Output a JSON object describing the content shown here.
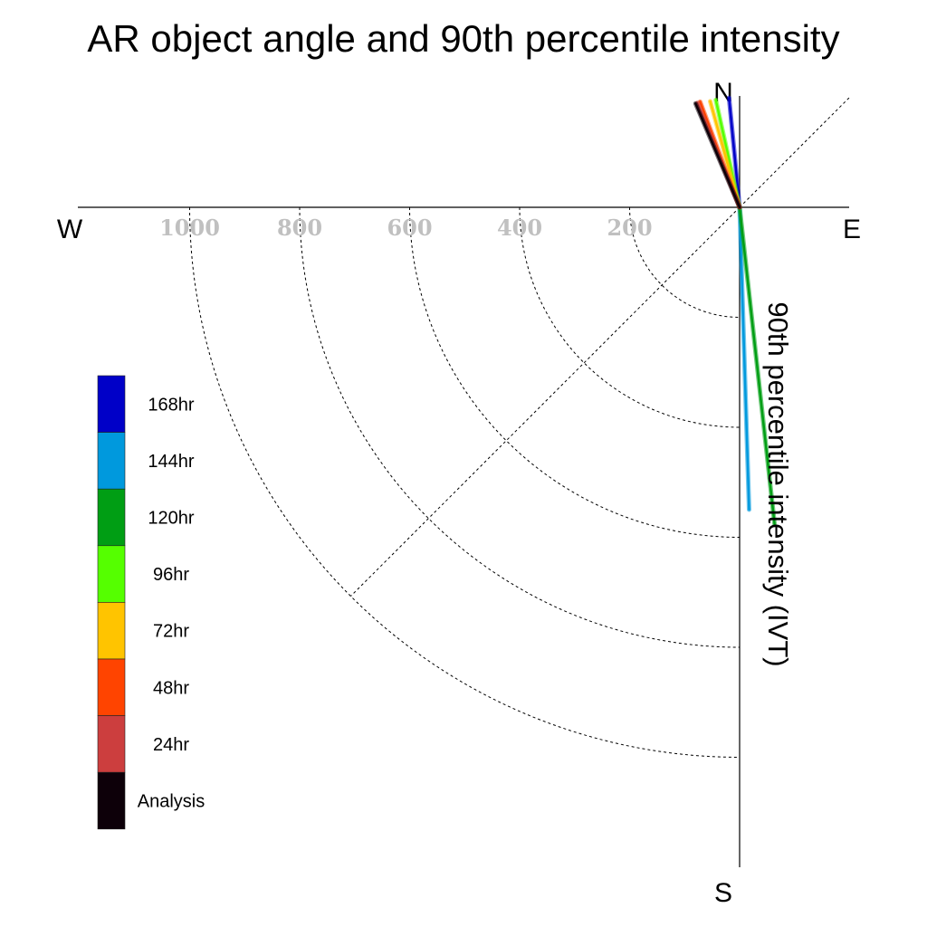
{
  "chart_data": {
    "type": "polar-vector",
    "title": "AR object angle and 90th percentile intensity",
    "radial_axis_label": "90th percentile intensity (IVT)",
    "compass_labels": {
      "north": "N",
      "south": "S",
      "east": "E",
      "west": "W"
    },
    "radial_ticks": [
      200,
      400,
      600,
      800,
      1000
    ],
    "rmax": 1200,
    "series": [
      {
        "name": "168hr",
        "color": "#0000c8",
        "angle_deg": -5.5,
        "intensity": 200
      },
      {
        "name": "144hr",
        "color": "#0099dd",
        "angle_deg": 178.2,
        "intensity": 550
      },
      {
        "name": "120hr",
        "color": "#009e14",
        "angle_deg": 173.7,
        "intensity": 580
      },
      {
        "name": "96hr",
        "color": "#55ff00",
        "angle_deg": -12.5,
        "intensity": 200
      },
      {
        "name": "72hr",
        "color": "#ffc400",
        "angle_deg": -15.5,
        "intensity": 200
      },
      {
        "name": "48hr",
        "color": "#ff4400",
        "angle_deg": -20.5,
        "intensity": 205
      },
      {
        "name": "24hr",
        "color": "#cc3e3e",
        "angle_deg": -22.0,
        "intensity": 205
      },
      {
        "name": "Analysis",
        "color": "#0d0009",
        "angle_deg": -23.0,
        "intensity": 205
      }
    ]
  }
}
